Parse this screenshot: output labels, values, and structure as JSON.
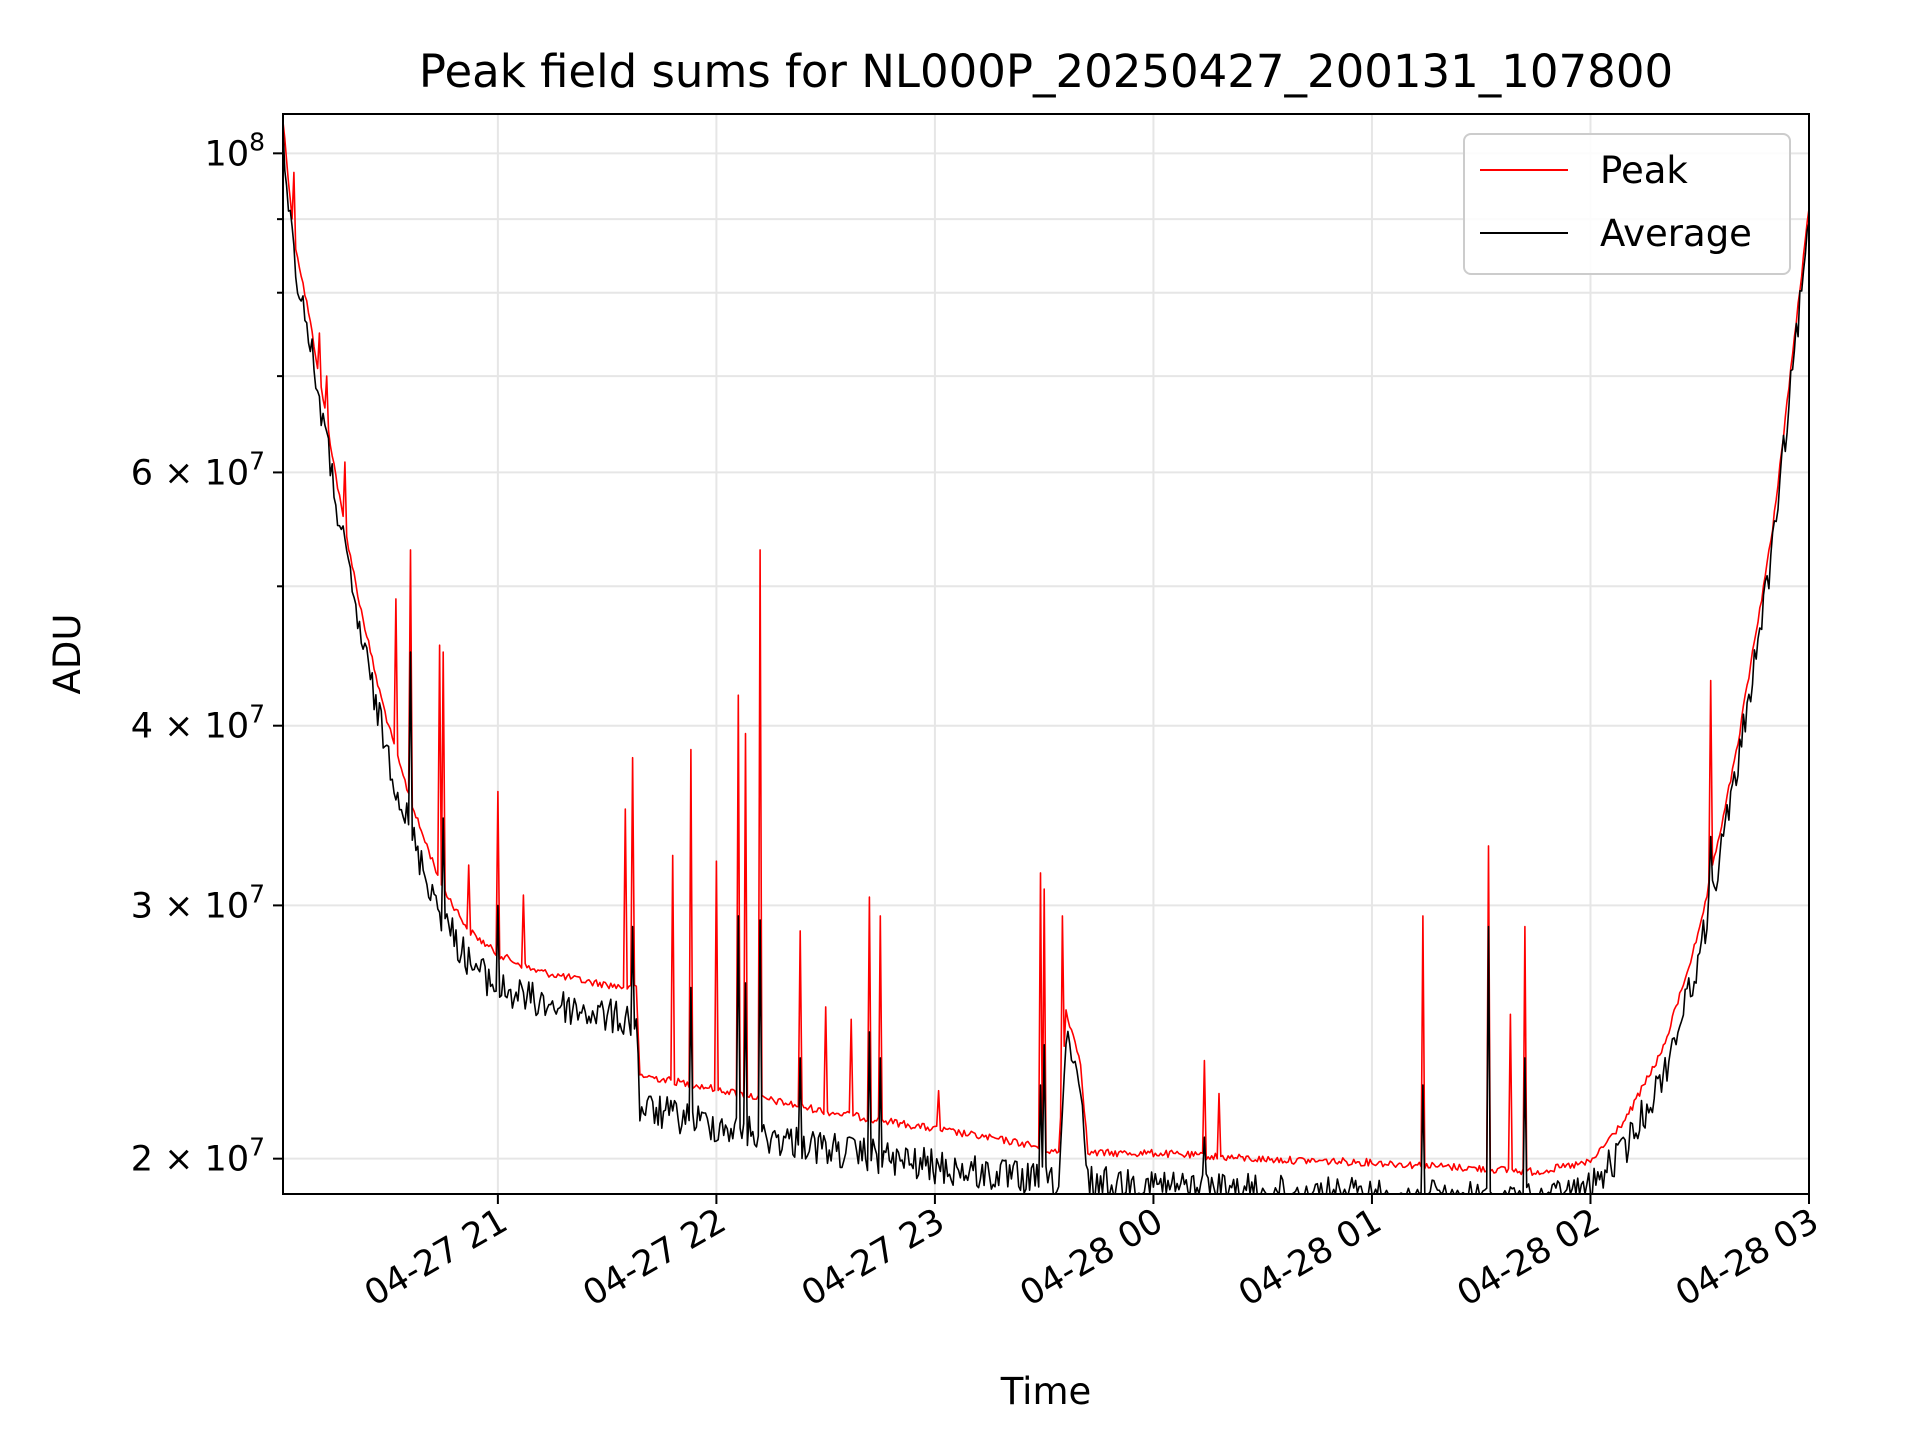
{
  "chart_data": {
    "type": "line",
    "title": "Peak field sums for NL000P_20250427_200131_107800",
    "xlabel": "Time",
    "ylabel": "ADU",
    "yscale": "log",
    "xlim": [
      "2025-04-27 20:01",
      "2025-04-28 03:00"
    ],
    "ylim": [
      18900000,
      106500000
    ],
    "grid": true,
    "legend_position": "top-right",
    "x_ticks": [
      {
        "t": "2025-04-27 21:00",
        "label": "04-27 21"
      },
      {
        "t": "2025-04-27 22:00",
        "label": "04-27 22"
      },
      {
        "t": "2025-04-27 23:00",
        "label": "04-27 23"
      },
      {
        "t": "2025-04-28 00:00",
        "label": "04-28 00"
      },
      {
        "t": "2025-04-28 01:00",
        "label": "04-28 01"
      },
      {
        "t": "2025-04-28 02:00",
        "label": "04-28 02"
      },
      {
        "t": "2025-04-28 03:00",
        "label": "04-28 03"
      }
    ],
    "y_major_ticks": [
      {
        "v": 100000000,
        "base": "10",
        "exp": "8"
      },
      {
        "v": 60000000,
        "base": "6 × 10",
        "exp": "7"
      },
      {
        "v": 40000000,
        "base": "4 × 10",
        "exp": "7"
      },
      {
        "v": 30000000,
        "base": "3 × 10",
        "exp": "7"
      },
      {
        "v": 20000000,
        "base": "2 × 10",
        "exp": "7"
      }
    ],
    "y_minor_ticks": [
      90000000,
      80000000,
      70000000,
      50000000
    ],
    "series": [
      {
        "name": "Peak",
        "color": "#ff0000",
        "baseline": [
          [
            "2025-04-27 20:01",
            106000000
          ],
          [
            "2025-04-27 20:04",
            88000000
          ],
          [
            "2025-04-27 20:08",
            78000000
          ],
          [
            "2025-04-27 20:12",
            68000000
          ],
          [
            "2025-04-27 20:17",
            57000000
          ],
          [
            "2025-04-27 20:22",
            49000000
          ],
          [
            "2025-04-27 20:27",
            43000000
          ],
          [
            "2025-04-27 20:32",
            38500000
          ],
          [
            "2025-04-27 20:38",
            34500000
          ],
          [
            "2025-04-27 20:45",
            31000000
          ],
          [
            "2025-04-27 20:52",
            29000000
          ],
          [
            "2025-04-27 21:00",
            27900000
          ],
          [
            "2025-04-27 21:10",
            27200000
          ],
          [
            "2025-04-27 21:25",
            26700000
          ],
          [
            "2025-04-27 21:38",
            26400000
          ],
          [
            "2025-04-27 21:39",
            23000000
          ],
          [
            "2025-04-27 22:00",
            22500000
          ],
          [
            "2025-04-27 22:30",
            21700000
          ],
          [
            "2025-04-27 23:00",
            21100000
          ],
          [
            "2025-04-27 23:25",
            20600000
          ],
          [
            "2025-04-27 23:34",
            20300000
          ],
          [
            "2025-04-27 23:36",
            25500000
          ],
          [
            "2025-04-27 23:40",
            23500000
          ],
          [
            "2025-04-27 23:42",
            20300000
          ],
          [
            "2025-04-28 00:00",
            20300000
          ],
          [
            "2025-04-28 00:30",
            20100000
          ],
          [
            "2025-04-28 01:00",
            20000000
          ],
          [
            "2025-04-28 01:45",
            19700000
          ],
          [
            "2025-04-28 02:00",
            20000000
          ],
          [
            "2025-04-28 02:10",
            21500000
          ],
          [
            "2025-04-28 02:20",
            24000000
          ],
          [
            "2025-04-28 02:30",
            29000000
          ],
          [
            "2025-04-28 02:40",
            38500000
          ],
          [
            "2025-04-28 02:50",
            55000000
          ],
          [
            "2025-04-28 03:00",
            92000000
          ]
        ],
        "spikes": [
          [
            "2025-04-27 20:04",
            97000000
          ],
          [
            "2025-04-27 20:11",
            75000000
          ],
          [
            "2025-04-27 20:13",
            70000000
          ],
          [
            "2025-04-27 20:18",
            61000000
          ],
          [
            "2025-04-27 20:32",
            49000000
          ],
          [
            "2025-04-27 20:36",
            53000000
          ],
          [
            "2025-04-27 20:44",
            45500000
          ],
          [
            "2025-04-27 20:45",
            45000000
          ],
          [
            "2025-04-27 20:52",
            32000000
          ],
          [
            "2025-04-27 21:00",
            36000000
          ],
          [
            "2025-04-27 21:07",
            30500000
          ],
          [
            "2025-04-27 21:35",
            35000000
          ],
          [
            "2025-04-27 21:37",
            38000000
          ],
          [
            "2025-04-27 21:48",
            32500000
          ],
          [
            "2025-04-27 21:53",
            38500000
          ],
          [
            "2025-04-27 22:00",
            32200000
          ],
          [
            "2025-04-27 22:06",
            42000000
          ],
          [
            "2025-04-27 22:08",
            39500000
          ],
          [
            "2025-04-27 22:12",
            53000000
          ],
          [
            "2025-04-27 22:23",
            28800000
          ],
          [
            "2025-04-27 22:30",
            25500000
          ],
          [
            "2025-04-27 22:37",
            25000000
          ],
          [
            "2025-04-27 22:42",
            30400000
          ],
          [
            "2025-04-27 22:45",
            29500000
          ],
          [
            "2025-04-27 23:01",
            22300000
          ],
          [
            "2025-04-27 23:29",
            31600000
          ],
          [
            "2025-04-27 23:30",
            30800000
          ],
          [
            "2025-04-27 23:35",
            29500000
          ],
          [
            "2025-04-28 00:14",
            23400000
          ],
          [
            "2025-04-28 00:18",
            22200000
          ],
          [
            "2025-04-28 01:14",
            29500000
          ],
          [
            "2025-04-28 01:32",
            33000000
          ],
          [
            "2025-04-28 01:38",
            25200000
          ],
          [
            "2025-04-28 01:42",
            29000000
          ],
          [
            "2025-04-28 02:33",
            43000000
          ]
        ]
      },
      {
        "name": "Average",
        "color": "#000000",
        "baseline": [
          [
            "2025-04-27 20:01",
            106000000
          ],
          [
            "2025-04-27 20:04",
            87000000
          ],
          [
            "2025-04-27 20:08",
            77000000
          ],
          [
            "2025-04-27 20:12",
            67000000
          ],
          [
            "2025-04-27 20:17",
            56000000
          ],
          [
            "2025-04-27 20:22",
            48000000
          ],
          [
            "2025-04-27 20:27",
            42000000
          ],
          [
            "2025-04-27 20:32",
            37500000
          ],
          [
            "2025-04-27 20:38",
            33500000
          ],
          [
            "2025-04-27 20:45",
            30200000
          ],
          [
            "2025-04-27 20:52",
            28200000
          ],
          [
            "2025-04-27 21:00",
            27000000
          ],
          [
            "2025-04-27 21:10",
            26500000
          ],
          [
            "2025-04-27 21:25",
            26000000
          ],
          [
            "2025-04-27 21:38",
            25600000
          ],
          [
            "2025-04-27 21:39",
            22300000
          ],
          [
            "2025-04-27 22:00",
            21700000
          ],
          [
            "2025-04-27 22:30",
            20900000
          ],
          [
            "2025-04-27 23:00",
            20300000
          ],
          [
            "2025-04-27 23:25",
            19900000
          ],
          [
            "2025-04-27 23:34",
            19700000
          ],
          [
            "2025-04-27 23:36",
            24800000
          ],
          [
            "2025-04-27 23:40",
            22800000
          ],
          [
            "2025-04-27 23:42",
            19800000
          ],
          [
            "2025-04-28 00:00",
            19700000
          ],
          [
            "2025-04-28 00:30",
            19500000
          ],
          [
            "2025-04-28 01:00",
            19400000
          ],
          [
            "2025-04-28 01:45",
            19200000
          ],
          [
            "2025-04-28 02:00",
            19600000
          ],
          [
            "2025-04-28 02:10",
            21000000
          ],
          [
            "2025-04-28 02:20",
            23500000
          ],
          [
            "2025-04-28 02:30",
            28500000
          ],
          [
            "2025-04-28 02:40",
            38000000
          ],
          [
            "2025-04-28 02:50",
            54500000
          ],
          [
            "2025-04-28 03:00",
            91500000
          ]
        ],
        "spikes": [
          [
            "2025-04-27 20:36",
            45000000
          ],
          [
            "2025-04-27 20:45",
            34500000
          ],
          [
            "2025-04-27 21:00",
            30000000
          ],
          [
            "2025-04-27 21:37",
            29000000
          ],
          [
            "2025-04-27 21:53",
            26300000
          ],
          [
            "2025-04-27 22:06",
            29500000
          ],
          [
            "2025-04-27 22:08",
            26500000
          ],
          [
            "2025-04-27 22:12",
            29300000
          ],
          [
            "2025-04-27 22:23",
            23500000
          ],
          [
            "2025-04-27 22:42",
            24500000
          ],
          [
            "2025-04-27 22:45",
            23500000
          ],
          [
            "2025-04-27 23:29",
            22500000
          ],
          [
            "2025-04-27 23:30",
            24000000
          ],
          [
            "2025-04-28 00:14",
            20700000
          ],
          [
            "2025-04-28 01:14",
            22500000
          ],
          [
            "2025-04-28 01:32",
            29000000
          ],
          [
            "2025-04-28 01:42",
            23500000
          ],
          [
            "2025-04-28 02:33",
            33500000
          ]
        ]
      }
    ]
  }
}
